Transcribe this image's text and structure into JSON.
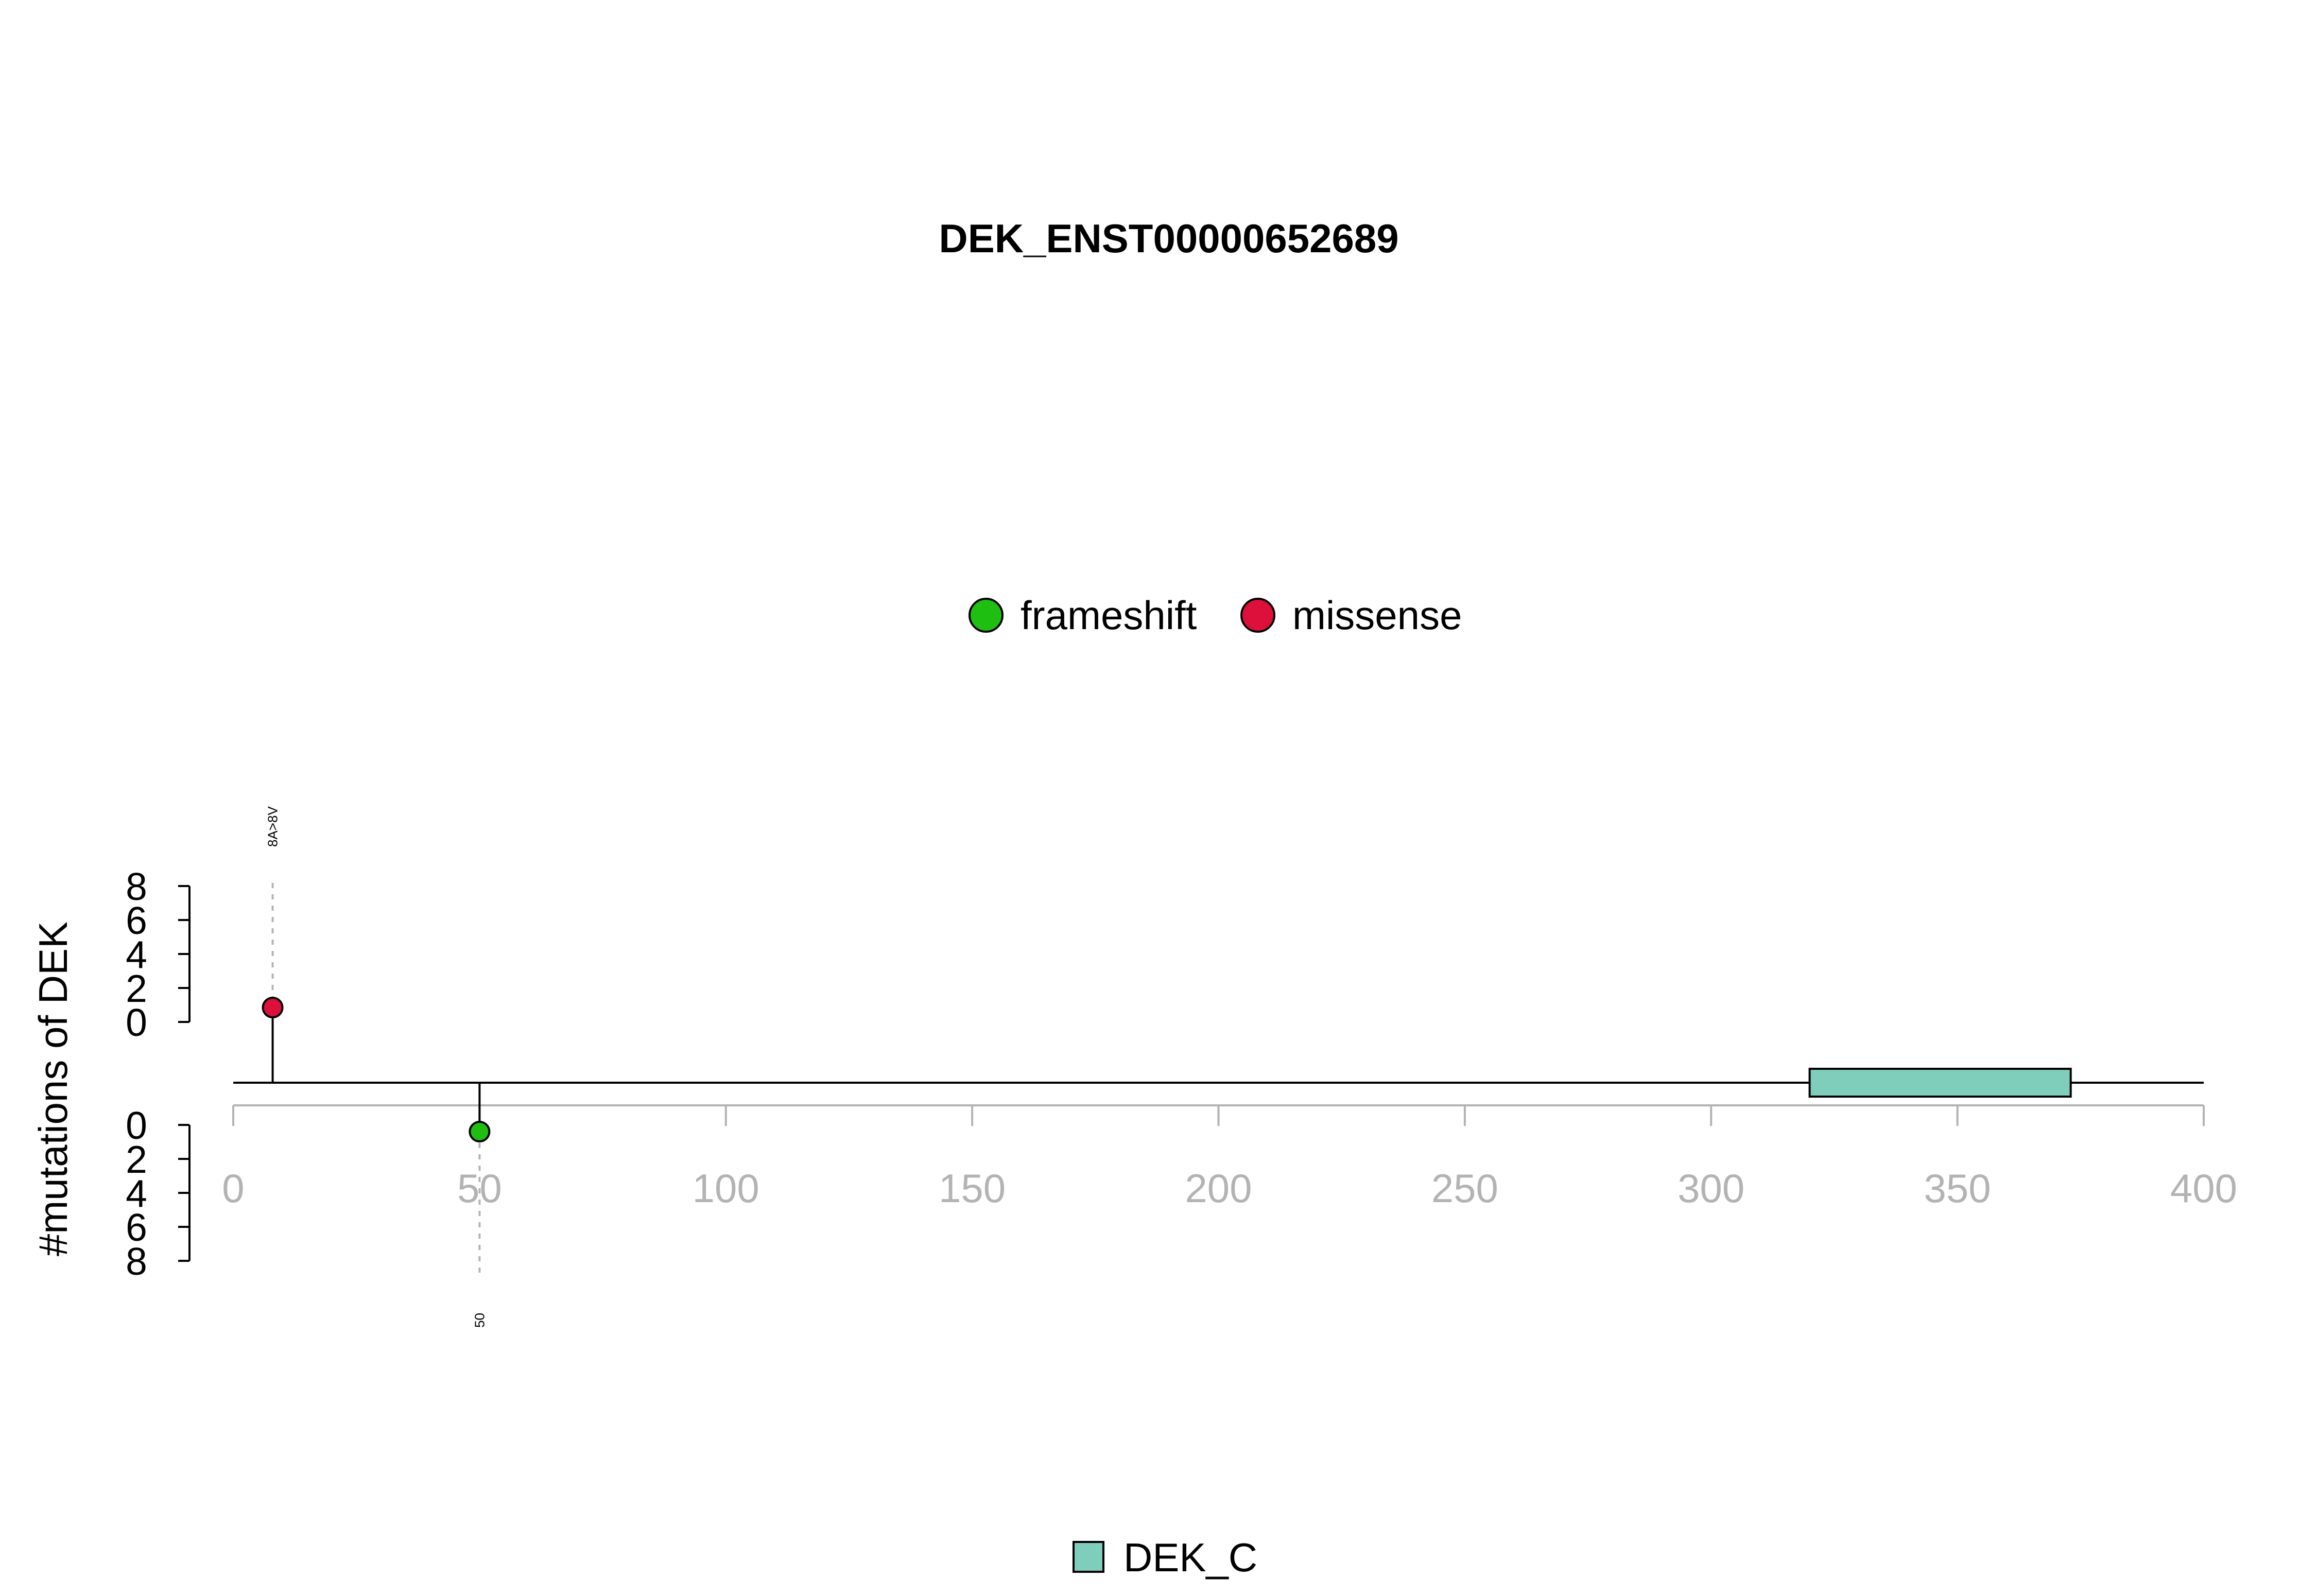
{
  "chart_data": {
    "type": "lollipop",
    "title": "DEK_ENST00000652689",
    "ylabel": "#mutations of DEK",
    "xlim": [
      0,
      400
    ],
    "x_ticks": [
      0,
      50,
      100,
      150,
      200,
      250,
      300,
      350,
      400
    ],
    "upper_y_ticks": [
      0,
      2,
      4,
      6,
      8
    ],
    "lower_y_ticks": [
      0,
      2,
      4,
      6,
      8
    ],
    "legend": [
      {
        "label": "frameshift",
        "color": "#1fbf12"
      },
      {
        "label": "missense",
        "color": "#dd0f3b"
      }
    ],
    "mutations": [
      {
        "position": 8,
        "count": 1,
        "type": "missense",
        "side": "upper",
        "label": "8A>8V",
        "color": "#dd0f3b"
      },
      {
        "position": 50,
        "count": 1,
        "type": "frameshift",
        "side": "lower",
        "label": "50",
        "color": "#1fbf12"
      }
    ],
    "domains": [
      {
        "name": "DEK_C",
        "start": 320,
        "end": 373,
        "color": "#7fcdbb"
      }
    ],
    "domain_legend": [
      {
        "label": "DEK_C",
        "color": "#7fcdbb"
      }
    ]
  }
}
